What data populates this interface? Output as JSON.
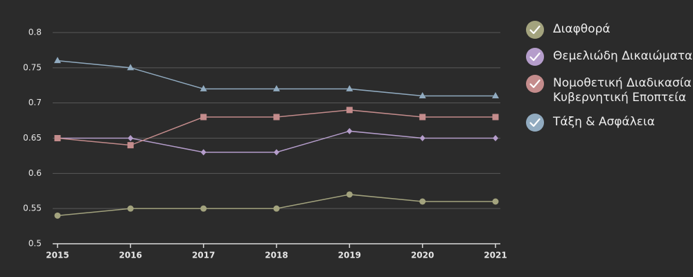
{
  "chart_data": {
    "type": "line",
    "categories": [
      "2015",
      "2016",
      "2017",
      "2018",
      "2019",
      "2020",
      "2021"
    ],
    "ylim": [
      0.5,
      0.8
    ],
    "yticks": [
      0.5,
      0.55,
      0.6,
      0.65,
      0.7,
      0.75,
      0.8
    ],
    "grid": true,
    "legend": "right",
    "series": [
      {
        "name": "Διαφθορά",
        "color": "#a3a37e",
        "marker": "circle",
        "values": [
          0.54,
          0.55,
          0.55,
          0.55,
          0.57,
          0.56,
          0.56
        ]
      },
      {
        "name": "Θεμελιώδη Δικαιώματα",
        "color": "#b59dcb",
        "marker": "diamond",
        "values": [
          0.65,
          0.65,
          0.63,
          0.63,
          0.66,
          0.65,
          0.65
        ]
      },
      {
        "name": "Νομοθετική Διαδικασία Κυβερνητική Εποπτεία",
        "color": "#c48c8c",
        "marker": "square",
        "values": [
          0.65,
          0.64,
          0.68,
          0.68,
          0.69,
          0.68,
          0.68
        ]
      },
      {
        "name": "Τάξη & Ασφάλεια",
        "color": "#91abc0",
        "marker": "triangle",
        "values": [
          0.76,
          0.75,
          0.72,
          0.72,
          0.72,
          0.71,
          0.71
        ]
      }
    ]
  }
}
